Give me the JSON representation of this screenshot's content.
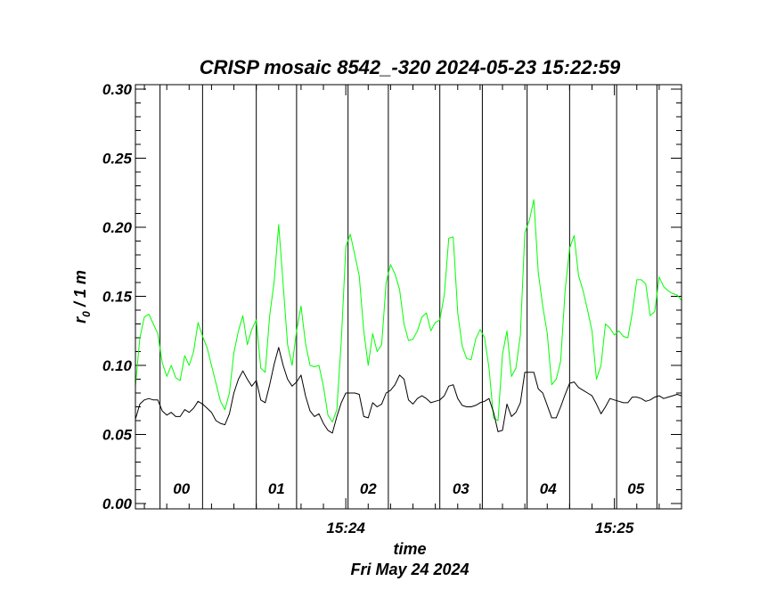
{
  "chart_data": {
    "type": "line",
    "title": "CRISP mosaic 8542_-320 2024-05-23 15:22:59",
    "xlabel": "time",
    "xsublabel": "Fri May 24 2024",
    "ylabel_main": "r",
    "ylabel_sub": "0",
    "ylabel_rest": " / 1 m",
    "ylim": [
      0.0,
      0.3
    ],
    "yticks": [
      {
        "value": 0.0,
        "label": "0.00"
      },
      {
        "value": 0.05,
        "label": "0.05"
      },
      {
        "value": 0.1,
        "label": "0.10"
      },
      {
        "value": 0.15,
        "label": "0.15"
      },
      {
        "value": 0.2,
        "label": "0.20"
      },
      {
        "value": 0.25,
        "label": "0.25"
      },
      {
        "value": 0.3,
        "label": "0.30"
      }
    ],
    "xlim_seconds": [
      0,
      122
    ],
    "x_unit": "seconds after 15:23:14",
    "xticks": [
      {
        "value": 47,
        "label": "15:24"
      },
      {
        "value": 107,
        "label": "15:25"
      }
    ],
    "segment_boundaries": [
      5.5,
      15.0,
      27.0,
      36.0,
      47.5,
      56.5,
      68.0,
      77.5,
      87.5,
      97.0,
      107.5,
      116.5
    ],
    "segment_labels": [
      {
        "label": "00",
        "x": 10.3
      },
      {
        "label": "01",
        "x": 31.5
      },
      {
        "label": "02",
        "x": 52.0
      },
      {
        "label": "03",
        "x": 72.7
      },
      {
        "label": "04",
        "x": 92.2
      },
      {
        "label": "05",
        "x": 111.8
      }
    ],
    "series": [
      {
        "color": "#00ff00",
        "x": [
          0,
          1,
          2,
          3,
          4,
          5,
          6,
          7,
          8,
          9,
          10,
          11,
          12,
          13,
          14,
          15,
          16,
          17,
          18,
          19,
          20,
          21,
          22,
          23,
          24,
          25,
          26,
          27,
          28,
          29,
          30,
          31,
          32,
          33,
          34,
          35,
          36,
          37,
          38,
          39,
          40,
          41,
          42,
          43,
          44,
          45,
          46,
          47,
          48,
          49,
          50,
          51,
          52,
          53,
          54,
          55,
          56,
          57,
          58,
          59,
          60,
          61,
          62,
          63,
          64,
          65,
          66,
          67,
          68,
          69,
          70,
          71,
          72,
          73,
          74,
          75,
          76,
          77,
          78,
          79,
          80,
          81,
          82,
          83,
          84,
          85,
          86,
          87,
          88,
          89,
          90,
          91,
          92,
          93,
          94,
          95,
          96,
          97,
          98,
          99,
          100,
          101,
          102,
          103,
          104,
          105,
          106,
          107,
          108,
          109,
          110,
          111,
          112,
          113,
          114,
          115,
          116,
          117,
          118,
          119,
          120,
          121,
          122
        ],
        "values": [
          0.085,
          0.12,
          0.135,
          0.137,
          0.13,
          0.123,
          0.102,
          0.092,
          0.1,
          0.091,
          0.089,
          0.107,
          0.1,
          0.11,
          0.131,
          0.121,
          0.113,
          0.1,
          0.087,
          0.074,
          0.068,
          0.08,
          0.109,
          0.125,
          0.136,
          0.115,
          0.126,
          0.133,
          0.098,
          0.095,
          0.136,
          0.161,
          0.202,
          0.159,
          0.115,
          0.1,
          0.125,
          0.143,
          0.116,
          0.1,
          0.099,
          0.1,
          0.085,
          0.064,
          0.059,
          0.068,
          0.118,
          0.186,
          0.195,
          0.18,
          0.165,
          0.125,
          0.1,
          0.123,
          0.11,
          0.115,
          0.16,
          0.173,
          0.166,
          0.155,
          0.13,
          0.118,
          0.119,
          0.125,
          0.135,
          0.138,
          0.125,
          0.131,
          0.133,
          0.151,
          0.192,
          0.193,
          0.138,
          0.114,
          0.105,
          0.104,
          0.119,
          0.126,
          0.12,
          0.098,
          0.062,
          0.06,
          0.108,
          0.125,
          0.092,
          0.098,
          0.122,
          0.196,
          0.205,
          0.22,
          0.167,
          0.143,
          0.123,
          0.086,
          0.09,
          0.103,
          0.155,
          0.185,
          0.194,
          0.165,
          0.154,
          0.14,
          0.125,
          0.09,
          0.1,
          0.13,
          0.127,
          0.122,
          0.125,
          0.121,
          0.12,
          0.138,
          0.162,
          0.162,
          0.159,
          0.136,
          0.139,
          0.164,
          0.157,
          0.154,
          0.152,
          0.151,
          0.147
        ]
      },
      {
        "color": "#000000",
        "x": [
          0,
          1,
          2,
          3,
          4,
          5,
          6,
          7,
          8,
          9,
          10,
          11,
          12,
          13,
          14,
          15,
          16,
          17,
          18,
          19,
          20,
          21,
          22,
          23,
          24,
          25,
          26,
          27,
          28,
          29,
          30,
          31,
          32,
          33,
          34,
          35,
          36,
          37,
          38,
          39,
          40,
          41,
          42,
          43,
          44,
          45,
          46,
          47,
          48,
          49,
          50,
          51,
          52,
          53,
          54,
          55,
          56,
          57,
          58,
          59,
          60,
          61,
          62,
          63,
          64,
          65,
          66,
          67,
          68,
          69,
          70,
          71,
          72,
          73,
          74,
          75,
          76,
          77,
          78,
          79,
          80,
          81,
          82,
          83,
          84,
          85,
          86,
          87,
          88,
          89,
          90,
          91,
          92,
          93,
          94,
          95,
          96,
          97,
          98,
          99,
          100,
          101,
          102,
          103,
          104,
          105,
          106,
          107,
          108,
          109,
          110,
          111,
          112,
          113,
          114,
          115,
          116,
          117,
          118,
          119,
          120,
          121,
          122
        ],
        "values": [
          0.061,
          0.072,
          0.075,
          0.076,
          0.075,
          0.075,
          0.067,
          0.064,
          0.066,
          0.063,
          0.063,
          0.068,
          0.066,
          0.069,
          0.074,
          0.072,
          0.069,
          0.066,
          0.06,
          0.058,
          0.057,
          0.065,
          0.08,
          0.09,
          0.096,
          0.09,
          0.085,
          0.089,
          0.075,
          0.073,
          0.086,
          0.101,
          0.113,
          0.1,
          0.09,
          0.085,
          0.088,
          0.093,
          0.078,
          0.067,
          0.063,
          0.065,
          0.058,
          0.053,
          0.051,
          0.063,
          0.073,
          0.08,
          0.08,
          0.08,
          0.079,
          0.063,
          0.062,
          0.073,
          0.07,
          0.072,
          0.08,
          0.082,
          0.086,
          0.093,
          0.09,
          0.075,
          0.072,
          0.076,
          0.078,
          0.076,
          0.073,
          0.074,
          0.075,
          0.078,
          0.085,
          0.086,
          0.076,
          0.071,
          0.07,
          0.07,
          0.071,
          0.073,
          0.074,
          0.076,
          0.066,
          0.052,
          0.053,
          0.072,
          0.063,
          0.066,
          0.073,
          0.095,
          0.095,
          0.095,
          0.083,
          0.08,
          0.071,
          0.062,
          0.062,
          0.07,
          0.079,
          0.087,
          0.088,
          0.084,
          0.082,
          0.08,
          0.078,
          0.072,
          0.065,
          0.07,
          0.076,
          0.075,
          0.074,
          0.073,
          0.073,
          0.077,
          0.077,
          0.076,
          0.074,
          0.075,
          0.077,
          0.078,
          0.076,
          0.077,
          0.078,
          0.079,
          0.078
        ]
      }
    ]
  }
}
